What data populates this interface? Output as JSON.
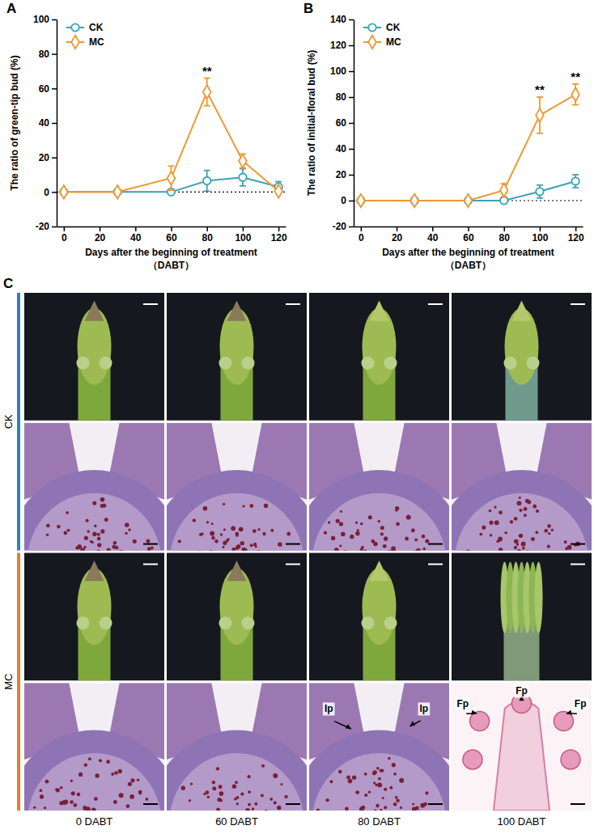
{
  "chart_data": [
    {
      "type": "line",
      "panel": "A",
      "y_label": "The ratio of green-tip bud (%)",
      "x_label": "Days after the beginning of treatment",
      "x_label_unit": "（DABT）",
      "x": [
        0,
        30,
        60,
        80,
        100,
        120
      ],
      "xlim": [
        -4,
        124
      ],
      "xticks": [
        0,
        20,
        40,
        60,
        80,
        100,
        120
      ],
      "ylim": [
        -20,
        100
      ],
      "yticks": [
        -20,
        0,
        20,
        40,
        60,
        80,
        100
      ],
      "hline": 0,
      "legend": "upper left",
      "series": [
        {
          "name": "CK",
          "color": "#3ba3b5",
          "marker": "circle",
          "values": [
            0,
            0,
            0,
            6.5,
            8.5,
            3
          ],
          "errors": [
            0,
            0,
            0,
            6,
            5,
            3
          ]
        },
        {
          "name": "MC",
          "color": "#f0972f",
          "marker": "diamond",
          "values": [
            0,
            0,
            8,
            58,
            18,
            0.5
          ],
          "errors": [
            0,
            0,
            7,
            8,
            4,
            1
          ]
        }
      ],
      "annotations": [
        {
          "x": 80,
          "text": "**"
        }
      ]
    },
    {
      "type": "line",
      "panel": "B",
      "y_label": "The ratio of initial-floral bud (%)",
      "x_label": "Days after the beginning of treatment",
      "x_label_unit": "（DABT）",
      "x": [
        0,
        30,
        60,
        80,
        100,
        120
      ],
      "xlim": [
        -4,
        124
      ],
      "xticks": [
        0,
        20,
        40,
        60,
        80,
        100,
        120
      ],
      "ylim": [
        -20,
        140
      ],
      "yticks": [
        -20,
        0,
        20,
        40,
        60,
        80,
        100,
        120,
        140
      ],
      "hline": 0,
      "legend": "upper left",
      "series": [
        {
          "name": "CK",
          "color": "#3ba3b5",
          "marker": "circle",
          "values": [
            0,
            0,
            0,
            0,
            7,
            15
          ],
          "errors": [
            0,
            0,
            0,
            0,
            5,
            5
          ]
        },
        {
          "name": "MC",
          "color": "#f0972f",
          "marker": "diamond",
          "values": [
            0,
            0,
            0,
            8,
            66,
            82
          ],
          "errors": [
            0,
            0,
            0,
            5,
            14,
            8
          ]
        }
      ],
      "annotations": [
        {
          "x": 100,
          "text": "**"
        },
        {
          "x": 120,
          "text": "**"
        }
      ]
    }
  ],
  "figure_c": {
    "panel": "C",
    "rows": [
      "CK",
      "MC"
    ],
    "row_colors": [
      "#2f7fc1",
      "#ec7a2c"
    ],
    "columns": [
      "0 DABT",
      "60 DABT",
      "80 DABT",
      "100 DABT"
    ],
    "arrows": [
      {
        "row": "MC",
        "column": "80 DABT",
        "label": "Ip"
      },
      {
        "row": "MC",
        "column": "80 DABT",
        "label": "Ip"
      },
      {
        "row": "MC",
        "column": "100 DABT",
        "label": "Fp"
      },
      {
        "row": "MC",
        "column": "100 DABT",
        "label": "Fp"
      },
      {
        "row": "MC",
        "column": "100 DABT",
        "label": "Fp"
      }
    ]
  }
}
